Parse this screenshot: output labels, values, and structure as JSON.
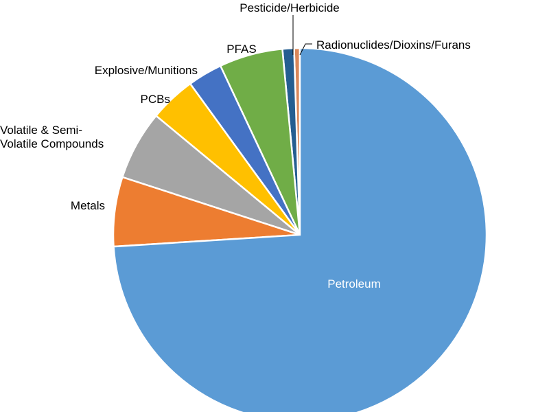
{
  "chart_data": {
    "type": "pie",
    "categories": [
      "Petroleum",
      "Metals",
      "Volatile & Semi-\nVolatile Compounds",
      "PCBs",
      "Explosive/Munitions",
      "PFAS",
      "Pesticide/Herbicide",
      "Radionuclides/Dioxins/Furans"
    ],
    "values": [
      74,
      6,
      6,
      4,
      3,
      5.5,
      1,
      0.5
    ],
    "colors": [
      "#5b9bd5",
      "#ed7d31",
      "#a5a5a5",
      "#ffc000",
      "#4472c4",
      "#70ad47",
      "#255e91",
      "#d9875a"
    ]
  }
}
